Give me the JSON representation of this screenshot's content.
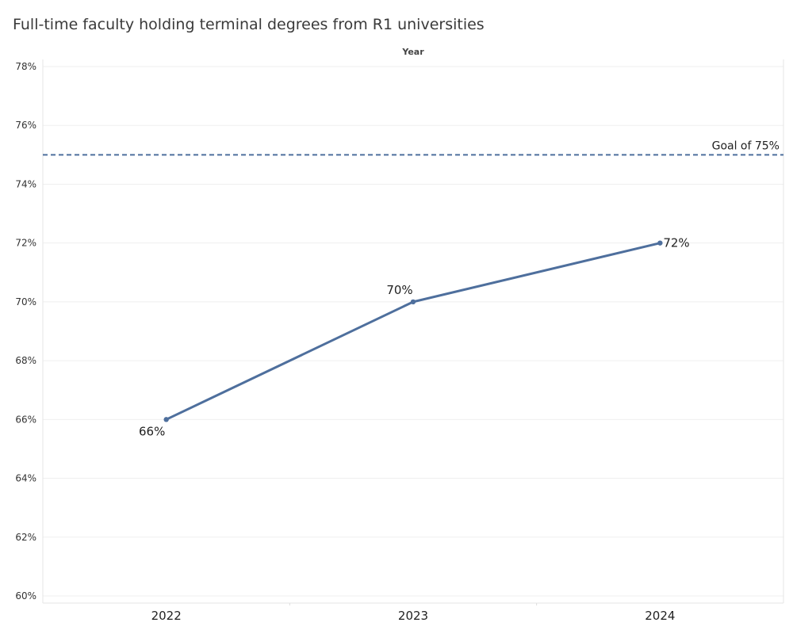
{
  "chart_data": {
    "type": "line",
    "title": "Full-time faculty holding terminal degrees from R1 universities",
    "xlabel": "Year",
    "ylabel": "",
    "categories": [
      "2022",
      "2023",
      "2024"
    ],
    "series": [
      {
        "values": [
          0.66,
          0.7,
          0.72
        ],
        "labels": [
          "66%",
          "70%",
          "72%"
        ],
        "color": "#4e6f9d"
      }
    ],
    "ylim": [
      0.6,
      0.78
    ],
    "yticks": [
      0.6,
      0.62,
      0.64,
      0.66,
      0.68,
      0.7,
      0.72,
      0.74,
      0.76,
      0.78
    ],
    "ytick_labels": [
      "60%",
      "62%",
      "64%",
      "66%",
      "68%",
      "70%",
      "72%",
      "74%",
      "76%",
      "78%"
    ],
    "reference_line": {
      "value": 0.75,
      "label": "Goal of 75%",
      "color": "#4e6f9d",
      "style": "dashed"
    },
    "grid": true
  }
}
